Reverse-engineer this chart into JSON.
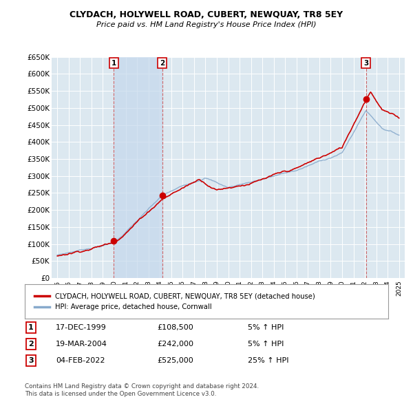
{
  "title": "CLYDACH, HOLYWELL ROAD, CUBERT, NEWQUAY, TR8 5EY",
  "subtitle": "Price paid vs. HM Land Registry's House Price Index (HPI)",
  "legend_line1": "CLYDACH, HOLYWELL ROAD, CUBERT, NEWQUAY, TR8 5EY (detached house)",
  "legend_line2": "HPI: Average price, detached house, Cornwall",
  "footnote1": "Contains HM Land Registry data © Crown copyright and database right 2024.",
  "footnote2": "This data is licensed under the Open Government Licence v3.0.",
  "sales": [
    {
      "label": "1",
      "x": 1999.96,
      "price": 108500
    },
    {
      "label": "2",
      "x": 2004.21,
      "price": 242000
    },
    {
      "label": "3",
      "x": 2022.09,
      "price": 525000
    }
  ],
  "table_rows": [
    {
      "num": "1",
      "date": "17-DEC-1999",
      "price": "£108,500",
      "pct": "5% ↑ HPI"
    },
    {
      "num": "2",
      "date": "19-MAR-2004",
      "price": "£242,000",
      "pct": "5% ↑ HPI"
    },
    {
      "num": "3",
      "date": "04-FEB-2022",
      "price": "£525,000",
      "pct": "25% ↑ HPI"
    }
  ],
  "ylim": [
    0,
    650000
  ],
  "yticks": [
    0,
    50000,
    100000,
    150000,
    200000,
    250000,
    300000,
    350000,
    400000,
    450000,
    500000,
    550000,
    600000,
    650000
  ],
  "xlim": [
    1994.5,
    2025.5
  ],
  "xticks": [
    1995,
    1996,
    1997,
    1998,
    1999,
    2000,
    2001,
    2002,
    2003,
    2004,
    2005,
    2006,
    2007,
    2008,
    2009,
    2010,
    2011,
    2012,
    2013,
    2014,
    2015,
    2016,
    2017,
    2018,
    2019,
    2020,
    2021,
    2022,
    2023,
    2024,
    2025
  ],
  "price_color": "#cc0000",
  "hpi_line_color": "#88aacc",
  "chart_bg": "#dce8f0",
  "grid_color": "#ffffff",
  "sale_marker_color": "#cc0000",
  "sale_label_border": "#cc0000",
  "shade_color": "#c5d8ec",
  "vline_color": "#cc4444"
}
